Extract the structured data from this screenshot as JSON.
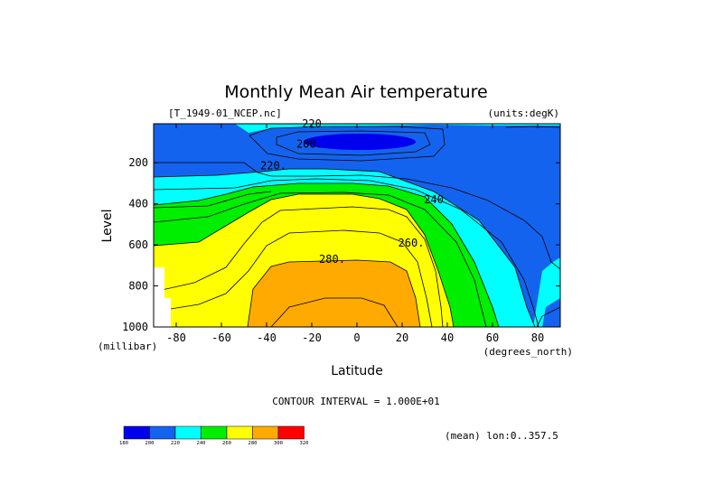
{
  "chart_data": {
    "type": "heatmap",
    "title": "Monthly Mean Air temperature",
    "source_file": "[T_1949-01_NCEP.nc]",
    "units_label": "(units:degK)",
    "xlabel": "Latitude",
    "x_units": "(degrees_north)",
    "ylabel": "Level",
    "y_units": "(millibar)",
    "xlim": [
      -90,
      90
    ],
    "ylim": [
      1000,
      10
    ],
    "x_ticks": [
      -80,
      -60,
      -40,
      -20,
      0,
      20,
      40,
      60,
      80
    ],
    "y_ticks": [
      200,
      400,
      600,
      800,
      1000
    ],
    "contour_interval_text": "CONTOUR INTERVAL = 1.000E+01",
    "mean_note": "(mean) lon:0..357.5",
    "contour_labels": [
      {
        "text": "220",
        "lat": -20,
        "level": 10
      },
      {
        "text": "200.",
        "lat": -21,
        "level": 110
      },
      {
        "text": "220.",
        "lat": -37,
        "level": 215
      },
      {
        "text": "240",
        "lat": 34,
        "level": 380
      },
      {
        "text": "260.",
        "lat": 24,
        "level": 590
      },
      {
        "text": "280.",
        "lat": -11,
        "level": 670
      }
    ],
    "colorbar": {
      "levels": [
        "180",
        "200",
        "220",
        "240",
        "260",
        "280",
        "300",
        "320"
      ],
      "colors": [
        "#0000ee",
        "#1463ee",
        "#00ffff",
        "#00ee00",
        "#ffff00",
        "#ffaa00",
        "#ff0000"
      ]
    },
    "background_color": "#ffffff",
    "missing_color": "#ffffff",
    "contour_line_color": "#000000"
  }
}
